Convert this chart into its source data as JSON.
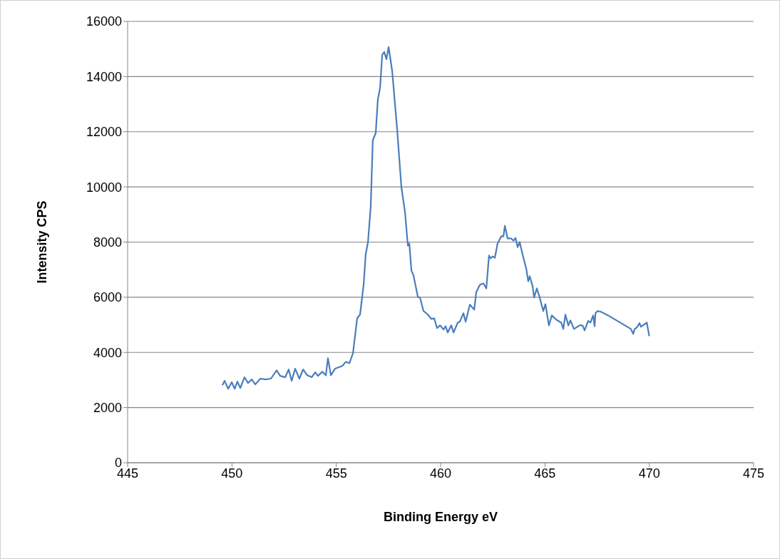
{
  "chart_data": {
    "type": "line",
    "xlabel": "Binding Energy eV",
    "ylabel": "Intensity CPS",
    "color": "#4a7ebb",
    "grid": "y",
    "xlim": [
      445,
      475
    ],
    "xticks": [
      445,
      450,
      455,
      460,
      465,
      470,
      475
    ],
    "ylim": [
      0,
      16000
    ],
    "yticks": [
      0,
      2000,
      4000,
      6000,
      8000,
      10000,
      12000,
      14000,
      16000
    ],
    "x": [
      449.54,
      449.65,
      449.82,
      449.99,
      450.13,
      450.26,
      450.4,
      450.6,
      450.77,
      450.95,
      451.12,
      451.36,
      451.59,
      451.87,
      452.14,
      452.31,
      452.55,
      452.72,
      452.86,
      453.03,
      453.23,
      453.41,
      453.61,
      453.82,
      453.99,
      454.12,
      454.33,
      454.5,
      454.6,
      454.74,
      454.94,
      455.29,
      455.46,
      455.63,
      455.8,
      456.0,
      456.14,
      456.31,
      456.41,
      456.52,
      456.65,
      456.75,
      456.89,
      456.99,
      457.1,
      457.2,
      457.3,
      457.4,
      457.51,
      457.68,
      457.92,
      458.12,
      458.29,
      458.43,
      458.5,
      458.6,
      458.7,
      458.91,
      459.01,
      459.18,
      459.39,
      459.56,
      459.69,
      459.83,
      459.97,
      460.14,
      460.24,
      460.34,
      460.51,
      460.62,
      460.82,
      460.92,
      461.09,
      461.2,
      461.4,
      461.61,
      461.71,
      461.88,
      462.05,
      462.19,
      462.32,
      462.39,
      462.5,
      462.6,
      462.73,
      462.91,
      463.01,
      463.08,
      463.21,
      463.38,
      463.49,
      463.59,
      463.69,
      463.79,
      463.93,
      464.1,
      464.2,
      464.27,
      464.41,
      464.48,
      464.61,
      464.72,
      464.92,
      465.02,
      465.19,
      465.33,
      465.54,
      465.78,
      465.88,
      465.98,
      466.12,
      466.22,
      466.39,
      466.66,
      466.8,
      466.9,
      467.07,
      467.18,
      467.31,
      467.38,
      467.42,
      467.52,
      467.69,
      468.03,
      469.12,
      469.23,
      469.3,
      469.4,
      469.53,
      469.6,
      469.88,
      470.0
    ],
    "values": [
      2810,
      2970,
      2680,
      2920,
      2680,
      2940,
      2710,
      3100,
      2890,
      3020,
      2840,
      3050,
      3020,
      3050,
      3350,
      3150,
      3100,
      3380,
      2970,
      3410,
      3050,
      3380,
      3170,
      3100,
      3280,
      3150,
      3300,
      3170,
      3790,
      3170,
      3410,
      3510,
      3660,
      3610,
      3970,
      5240,
      5370,
      6450,
      7560,
      8000,
      9290,
      11690,
      11950,
      13160,
      13600,
      14790,
      14890,
      14630,
      15070,
      14190,
      12050,
      9990,
      9110,
      7870,
      7950,
      6970,
      6790,
      6010,
      5990,
      5500,
      5370,
      5210,
      5240,
      4880,
      4980,
      4830,
      4950,
      4720,
      4980,
      4720,
      5080,
      5110,
      5420,
      5110,
      5730,
      5550,
      6190,
      6450,
      6500,
      6320,
      7510,
      7410,
      7480,
      7430,
      7950,
      8210,
      8210,
      8590,
      8130,
      8130,
      8050,
      8150,
      7820,
      8000,
      7540,
      7050,
      6580,
      6760,
      6400,
      5990,
      6320,
      6060,
      5500,
      5750,
      4980,
      5340,
      5190,
      5080,
      4850,
      5370,
      4980,
      5160,
      4850,
      4980,
      4980,
      4800,
      5140,
      5080,
      5340,
      4950,
      5420,
      5500,
      5470,
      5340,
      4850,
      4670,
      4850,
      4900,
      5060,
      4930,
      5080,
      4590
    ]
  }
}
